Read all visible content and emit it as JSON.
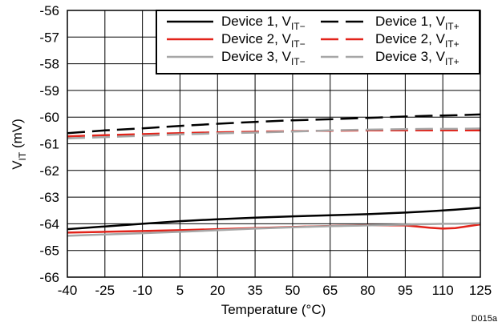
{
  "chart_data": {
    "type": "line",
    "title": "",
    "xlabel": "Temperature (°C)",
    "ylabel_main": "V",
    "ylabel_sub": "IT",
    "ylabel_unit": " (mV)",
    "xlim": [
      -40,
      125
    ],
    "ylim": [
      -66,
      -56
    ],
    "xticks": [
      -40,
      -25,
      -10,
      5,
      20,
      35,
      50,
      65,
      80,
      95,
      110,
      125
    ],
    "yticks": [
      -66,
      -65,
      -64,
      -63,
      -62,
      -61,
      -60,
      -59,
      -58,
      -57,
      -56
    ],
    "xtick_labels": [
      "-40",
      "-25",
      "-10",
      "5",
      "20",
      "35",
      "50",
      "65",
      "80",
      "95",
      "110",
      "125"
    ],
    "ytick_labels": [
      "-66",
      "-65",
      "-64",
      "-63",
      "-62",
      "-61",
      "-60",
      "-59",
      "-58",
      "-57",
      "-56"
    ],
    "grid": true,
    "legend_position": "top-right",
    "legend_prefix": "Device",
    "x": [
      -40,
      -25,
      -10,
      5,
      20,
      35,
      50,
      65,
      80,
      95,
      105,
      110,
      115,
      125
    ],
    "series": [
      {
        "device": "1",
        "label_main": "Device 1, V",
        "label_sub": "IT−",
        "color": "#000000",
        "dashed": false,
        "values": [
          -64.2,
          -64.1,
          -64.0,
          -63.9,
          -63.83,
          -63.77,
          -63.72,
          -63.68,
          -63.64,
          -63.58,
          -63.53,
          -63.5,
          -63.47,
          -63.4
        ]
      },
      {
        "device": "2",
        "label_main": "Device 2, V",
        "label_sub": "IT−",
        "color": "#e2231a",
        "dashed": false,
        "values": [
          -64.33,
          -64.3,
          -64.27,
          -64.24,
          -64.2,
          -64.16,
          -64.12,
          -64.08,
          -64.05,
          -64.06,
          -64.15,
          -64.18,
          -64.16,
          -64.02
        ]
      },
      {
        "device": "3",
        "label_main": "Device 3, V",
        "label_sub": "IT−",
        "color": "#a6a6a6",
        "dashed": false,
        "values": [
          -64.45,
          -64.4,
          -64.35,
          -64.3,
          -64.24,
          -64.18,
          -64.13,
          -64.09,
          -64.06,
          -64.03,
          -64.01,
          -64.0,
          -64.0,
          -63.98
        ]
      },
      {
        "device": "1",
        "label_main": "Device 1, V",
        "label_sub": "IT+",
        "color": "#000000",
        "dashed": true,
        "values": [
          -60.6,
          -60.5,
          -60.42,
          -60.33,
          -60.25,
          -60.18,
          -60.12,
          -60.08,
          -60.03,
          -59.98,
          -59.95,
          -59.94,
          -59.93,
          -59.9
        ]
      },
      {
        "device": "2",
        "label_main": "Device 2, V",
        "label_sub": "IT+",
        "color": "#e2231a",
        "dashed": true,
        "values": [
          -60.72,
          -60.68,
          -60.64,
          -60.6,
          -60.57,
          -60.55,
          -60.53,
          -60.51,
          -60.5,
          -60.5,
          -60.5,
          -60.5,
          -60.5,
          -60.5
        ]
      },
      {
        "device": "3",
        "label_main": "Device 3, V",
        "label_sub": "IT+",
        "color": "#a6a6a6",
        "dashed": true,
        "values": [
          -60.8,
          -60.75,
          -60.7,
          -60.65,
          -60.61,
          -60.58,
          -60.54,
          -60.5,
          -60.47,
          -60.45,
          -60.44,
          -60.44,
          -60.44,
          -60.43
        ]
      }
    ],
    "footnote": "D015a"
  }
}
